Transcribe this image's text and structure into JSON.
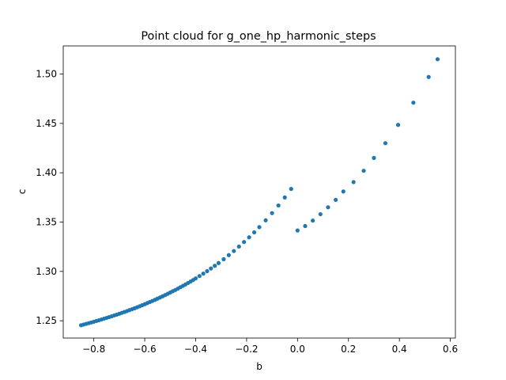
{
  "chart_data": {
    "type": "scatter",
    "title": "Point cloud for g_one_hp_harmonic_steps",
    "xlabel": "b",
    "ylabel": "c",
    "xlim": [
      -0.92,
      0.62
    ],
    "ylim": [
      1.2325,
      1.5285
    ],
    "xticks": [
      -0.8,
      -0.6,
      -0.4,
      -0.2,
      0.0,
      0.2,
      0.4,
      0.6
    ],
    "xtick_labels": [
      "−0.8",
      "−0.6",
      "−0.4",
      "−0.2",
      "0.0",
      "0.2",
      "0.4",
      "0.6"
    ],
    "yticks": [
      1.25,
      1.3,
      1.35,
      1.4,
      1.45,
      1.5
    ],
    "ytick_labels": [
      "1.25",
      "1.30",
      "1.35",
      "1.40",
      "1.45",
      "1.50"
    ],
    "grid": false,
    "marker_color": "#1f77b4",
    "series": [
      {
        "x": [
          -0.85,
          -0.84,
          -0.83,
          -0.82,
          -0.81,
          -0.8,
          -0.79,
          -0.78,
          -0.77,
          -0.76,
          -0.75,
          -0.74,
          -0.73,
          -0.72,
          -0.71,
          -0.7,
          -0.69,
          -0.68,
          -0.67,
          -0.66,
          -0.65,
          -0.64,
          -0.63,
          -0.62,
          -0.61,
          -0.6,
          -0.59,
          -0.58,
          -0.57,
          -0.56,
          -0.55,
          -0.54,
          -0.53,
          -0.52,
          -0.51,
          -0.5,
          -0.49,
          -0.48,
          -0.47,
          -0.46,
          -0.45,
          -0.44,
          -0.43,
          -0.42,
          -0.41,
          -0.4,
          -0.385,
          -0.37,
          -0.355,
          -0.34,
          -0.325,
          -0.31,
          -0.29,
          -0.27,
          -0.25,
          -0.23,
          -0.21,
          -0.19,
          -0.17,
          -0.15,
          -0.125,
          -0.1,
          -0.075,
          -0.05,
          -0.025,
          0.0,
          0.03,
          0.06,
          0.09,
          0.12,
          0.15,
          0.18,
          0.22,
          0.26,
          0.3,
          0.345,
          0.395,
          0.455,
          0.515,
          0.55
        ],
        "y": [
          1.2455,
          1.2462,
          1.2469,
          1.2476,
          1.2483,
          1.249,
          1.2498,
          1.2505,
          1.2513,
          1.2521,
          1.2529,
          1.2537,
          1.2545,
          1.2554,
          1.2562,
          1.2571,
          1.258,
          1.2589,
          1.2598,
          1.2608,
          1.2617,
          1.2627,
          1.2637,
          1.2647,
          1.2658,
          1.2668,
          1.2679,
          1.269,
          1.2701,
          1.2712,
          1.2724,
          1.2736,
          1.2748,
          1.276,
          1.2773,
          1.2786,
          1.2799,
          1.2812,
          1.2826,
          1.284,
          1.2854,
          1.2868,
          1.2883,
          1.2898,
          1.2913,
          1.2929,
          1.2953,
          1.2978,
          1.3003,
          1.303,
          1.3057,
          1.3085,
          1.3124,
          1.3165,
          1.3207,
          1.3252,
          1.3298,
          1.3346,
          1.3396,
          1.3449,
          1.3518,
          1.3591,
          1.3668,
          1.375,
          1.3836,
          1.3415,
          1.346,
          1.3515,
          1.358,
          1.365,
          1.3725,
          1.381,
          1.3905,
          1.402,
          1.415,
          1.43,
          1.4485,
          1.471,
          1.497,
          1.515
        ]
      }
    ]
  }
}
